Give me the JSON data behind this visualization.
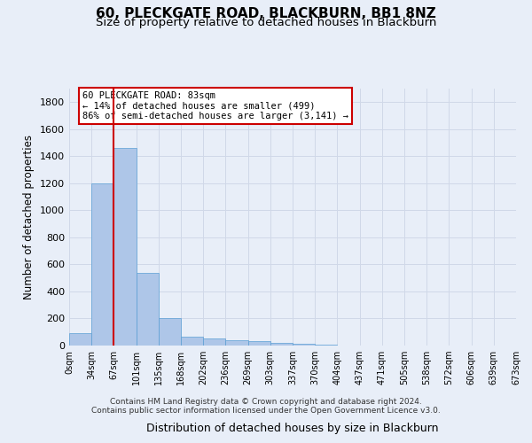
{
  "title": "60, PLECKGATE ROAD, BLACKBURN, BB1 8NZ",
  "subtitle": "Size of property relative to detached houses in Blackburn",
  "xlabel": "Distribution of detached houses by size in Blackburn",
  "ylabel": "Number of detached properties",
  "footer_line1": "Contains HM Land Registry data © Crown copyright and database right 2024.",
  "footer_line2": "Contains public sector information licensed under the Open Government Licence v3.0.",
  "bar_values": [
    90,
    1200,
    1460,
    535,
    205,
    65,
    50,
    42,
    30,
    20,
    10,
    5,
    3,
    2,
    1,
    1,
    0,
    0,
    0,
    0
  ],
  "bin_labels": [
    "0sqm",
    "34sqm",
    "67sqm",
    "101sqm",
    "135sqm",
    "168sqm",
    "202sqm",
    "236sqm",
    "269sqm",
    "303sqm",
    "337sqm",
    "370sqm",
    "404sqm",
    "437sqm",
    "471sqm",
    "505sqm",
    "538sqm",
    "572sqm",
    "606sqm",
    "639sqm",
    "673sqm"
  ],
  "bar_color": "#aec6e8",
  "bar_edge_color": "#5a9fd4",
  "vline_x": 2,
  "vline_color": "#cc0000",
  "annotation_text": "60 PLECKGATE ROAD: 83sqm\n← 14% of detached houses are smaller (499)\n86% of semi-detached houses are larger (3,141) →",
  "annotation_box_color": "#cc0000",
  "annotation_bg": "#ffffff",
  "ylim": [
    0,
    1900
  ],
  "yticks": [
    0,
    200,
    400,
    600,
    800,
    1000,
    1200,
    1400,
    1600,
    1800
  ],
  "grid_color": "#d0d8e8",
  "background_color": "#e8eef8",
  "title_fontsize": 11,
  "subtitle_fontsize": 9.5,
  "xlabel_fontsize": 9,
  "ylabel_fontsize": 8.5
}
